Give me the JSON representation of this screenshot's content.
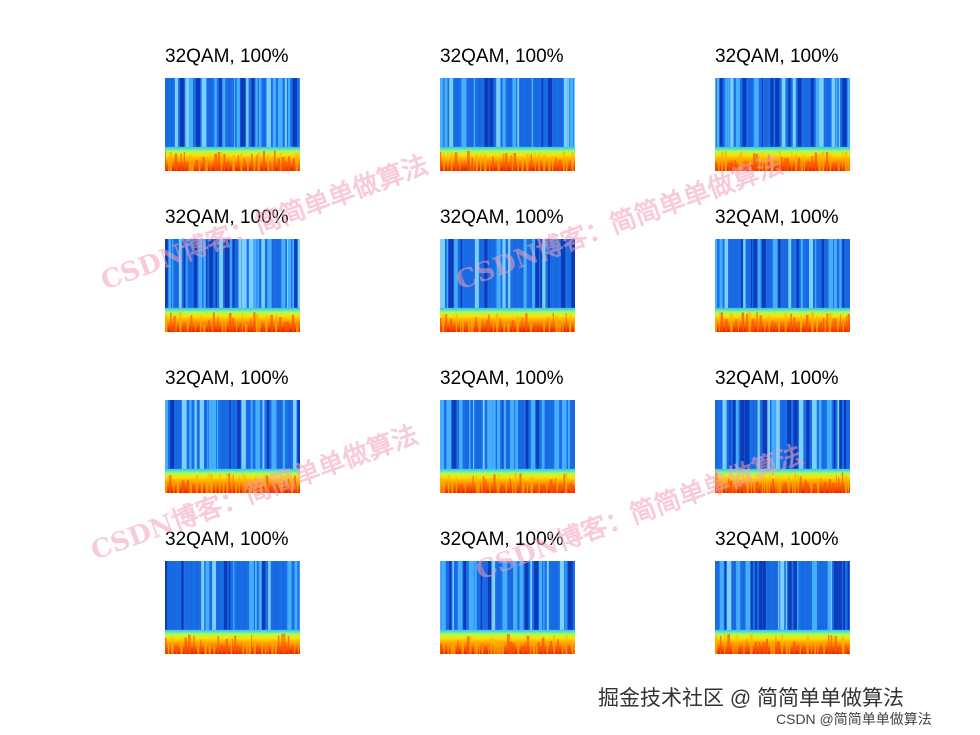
{
  "panels": [
    {
      "title": "32QAM, 100%"
    },
    {
      "title": "32QAM, 100%"
    },
    {
      "title": "32QAM, 100%"
    },
    {
      "title": "32QAM, 100%"
    },
    {
      "title": "32QAM, 100%"
    },
    {
      "title": "32QAM, 100%"
    },
    {
      "title": "32QAM, 100%"
    },
    {
      "title": "32QAM, 100%"
    },
    {
      "title": "32QAM, 100%"
    },
    {
      "title": "32QAM, 100%"
    },
    {
      "title": "32QAM, 100%"
    },
    {
      "title": "32QAM, 100%"
    }
  ],
  "watermarks": [
    "CSDN博客：简简单单做算法",
    "CSDN博客：简简单单做算法",
    "CSDN博客：简简单单做算法",
    "CSDN博客：简简单单做算法"
  ],
  "footer": {
    "juejin": "掘金技术社区 @ 简简单单做算法",
    "csdn": "CSDN @简简单单做算法"
  }
}
